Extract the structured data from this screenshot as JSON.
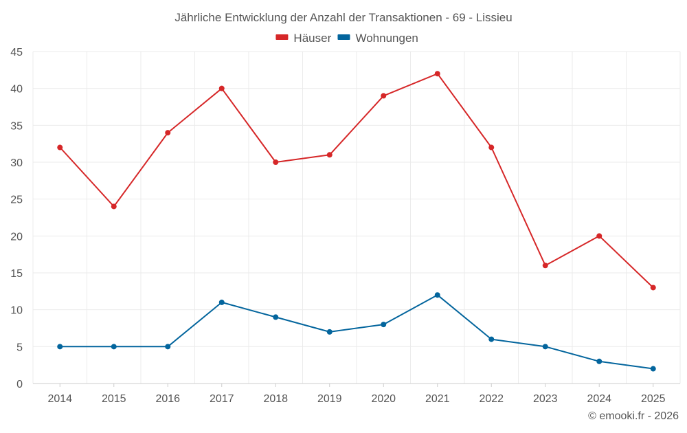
{
  "footer": {
    "credit": "© emooki.fr - 2026"
  },
  "chart_data": {
    "type": "line",
    "title": "Jährliche Entwicklung der Anzahl der Transaktionen - 69 - Lissieu",
    "xlabel": "",
    "ylabel": "",
    "categories": [
      "2014",
      "2015",
      "2016",
      "2017",
      "2018",
      "2019",
      "2020",
      "2021",
      "2022",
      "2023",
      "2024",
      "2025"
    ],
    "ylim": [
      0,
      45
    ],
    "yticks": [
      "0",
      "5",
      "10",
      "15",
      "20",
      "25",
      "30",
      "35",
      "40",
      "45"
    ],
    "grid": true,
    "legend_position": "top-center",
    "series": [
      {
        "name": "Häuser",
        "color": "#d62728",
        "values": [
          32,
          24,
          34,
          40,
          30,
          31,
          39,
          42,
          32,
          16,
          20,
          13
        ]
      },
      {
        "name": "Wohnungen",
        "color": "#03659d",
        "values": [
          5,
          5,
          5,
          11,
          9,
          7,
          8,
          12,
          6,
          5,
          3,
          2
        ]
      }
    ]
  }
}
